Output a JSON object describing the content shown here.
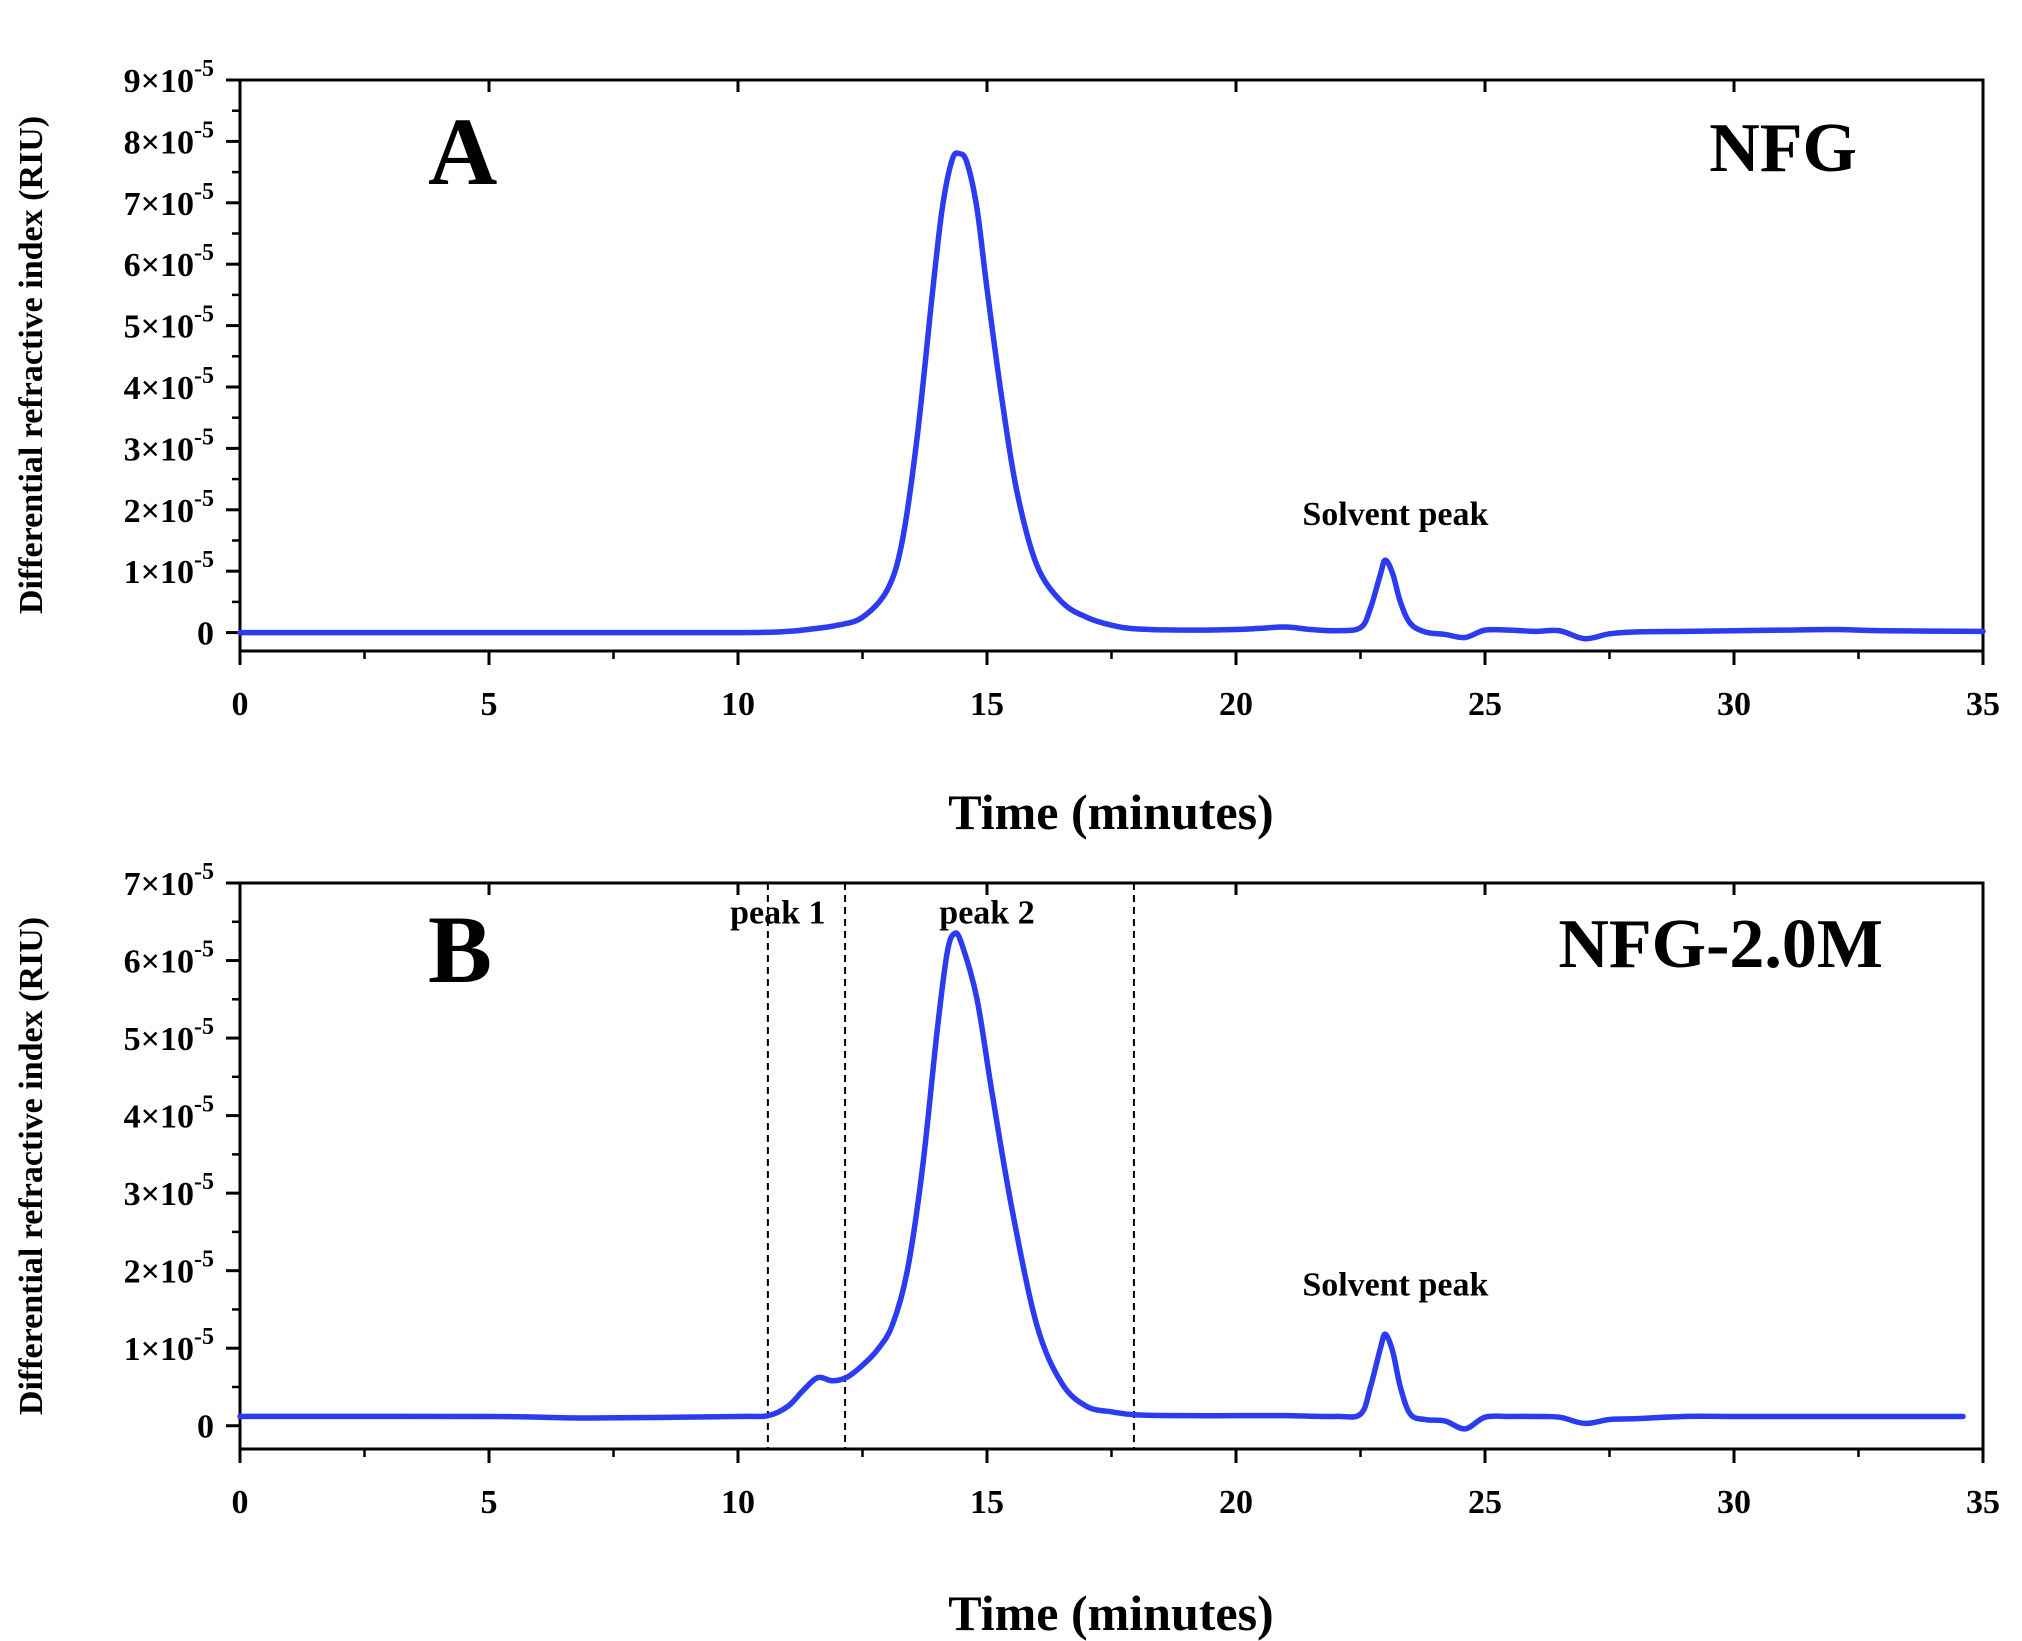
{
  "chart_data": [
    {
      "type": "line",
      "panel_label": "A",
      "sample_label": "NFG",
      "xlabel": "Time (minutes)",
      "ylabel": "Differential refractive index (RIU)",
      "xlim": [
        0,
        35
      ],
      "ylim": [
        -3e-06,
        9e-05
      ],
      "x_ticks": [
        0,
        5,
        10,
        15,
        20,
        25,
        30,
        35
      ],
      "y_ticks": [
        {
          "value": 0,
          "base": "0",
          "exp": ""
        },
        {
          "value": 1e-05,
          "base": "1×10",
          "exp": "-5"
        },
        {
          "value": 2e-05,
          "base": "2×10",
          "exp": "-5"
        },
        {
          "value": 3e-05,
          "base": "3×10",
          "exp": "-5"
        },
        {
          "value": 4e-05,
          "base": "4×10",
          "exp": "-5"
        },
        {
          "value": 5e-05,
          "base": "5×10",
          "exp": "-5"
        },
        {
          "value": 6e-05,
          "base": "6×10",
          "exp": "-5"
        },
        {
          "value": 7e-05,
          "base": "7×10",
          "exp": "-5"
        },
        {
          "value": 8e-05,
          "base": "8×10",
          "exp": "-5"
        },
        {
          "value": 9e-05,
          "base": "9×10",
          "exp": "-5"
        }
      ],
      "annotations": [
        {
          "text": "Solvent peak",
          "x": 23.2,
          "y": 1.75e-05
        }
      ],
      "series": [
        {
          "name": "NFG",
          "color": "#2b3cf0",
          "x": [
            0,
            5,
            10,
            11,
            11.5,
            12,
            12.5,
            13,
            13.3,
            13.6,
            13.9,
            14.1,
            14.3,
            14.45,
            14.6,
            14.8,
            15.0,
            15.3,
            15.6,
            16.0,
            16.5,
            17,
            17.5,
            18,
            19,
            20,
            20.5,
            21,
            21.5,
            22,
            22.5,
            22.7,
            22.9,
            23.0,
            23.15,
            23.3,
            23.5,
            23.8,
            24.2,
            24.6,
            25.0,
            25.5,
            26,
            26.5,
            27,
            27.5,
            28,
            29,
            30,
            31,
            32,
            33,
            35
          ],
          "y": [
            0,
            0,
            0,
            2e-07,
            6e-07,
            1.2e-06,
            2.5e-06,
            7e-06,
            1.5e-05,
            3.2e-05,
            5.5e-05,
            6.9e-05,
            7.7e-05,
            7.8e-05,
            7.65e-05,
            6.9e-05,
            5.6e-05,
            3.8e-05,
            2.3e-05,
            1.1e-05,
            5e-06,
            2.5e-06,
            1.2e-06,
            6e-07,
            4e-07,
            5e-07,
            7e-07,
            9e-07,
            5e-07,
            3e-07,
            8e-07,
            4e-06,
            9.5e-06,
            1.18e-05,
            9.5e-06,
            5e-06,
            1.5e-06,
            1e-07,
            -3e-07,
            -8e-07,
            4e-07,
            4e-07,
            2e-07,
            3e-07,
            -1e-06,
            -2e-07,
            1e-07,
            2e-07,
            3e-07,
            4e-07,
            5e-07,
            3e-07,
            2e-07
          ]
        }
      ]
    },
    {
      "type": "line",
      "panel_label": "B",
      "sample_label": "NFG-2.0M",
      "xlabel": "Time (minutes)",
      "ylabel": "Differential refractive index (RIU)",
      "xlim": [
        0,
        35
      ],
      "ylim": [
        -3e-06,
        7e-05
      ],
      "x_ticks": [
        0,
        5,
        10,
        15,
        20,
        25,
        30,
        35
      ],
      "y_ticks": [
        {
          "value": 0,
          "base": "0",
          "exp": ""
        },
        {
          "value": 1e-05,
          "base": "1×10",
          "exp": "-5"
        },
        {
          "value": 2e-05,
          "base": "2×10",
          "exp": "-5"
        },
        {
          "value": 3e-05,
          "base": "3×10",
          "exp": "-5"
        },
        {
          "value": 4e-05,
          "base": "4×10",
          "exp": "-5"
        },
        {
          "value": 5e-05,
          "base": "5×10",
          "exp": "-5"
        },
        {
          "value": 6e-05,
          "base": "6×10",
          "exp": "-5"
        },
        {
          "value": 7e-05,
          "base": "7×10",
          "exp": "-5"
        }
      ],
      "annotations": [
        {
          "text": "peak 1",
          "x": 10.8,
          "y": 6.48e-05
        },
        {
          "text": "peak 2",
          "x": 15.0,
          "y": 6.48e-05
        },
        {
          "text": "Solvent peak",
          "x": 23.2,
          "y": 1.68e-05
        }
      ],
      "vlines": [
        10.6,
        12.15,
        17.95
      ],
      "series": [
        {
          "name": "NFG-2.0M",
          "color": "#2b3cf0",
          "x": [
            0,
            5,
            7,
            10,
            10.6,
            11.0,
            11.3,
            11.6,
            11.9,
            12.2,
            12.5,
            12.8,
            13.1,
            13.4,
            13.7,
            14.0,
            14.2,
            14.35,
            14.5,
            14.8,
            15.1,
            15.5,
            16.0,
            16.5,
            17,
            17.5,
            18,
            19,
            20,
            21,
            22,
            22.5,
            22.7,
            22.9,
            23.0,
            23.15,
            23.3,
            23.5,
            23.8,
            24.2,
            24.6,
            25.0,
            25.5,
            26,
            26.5,
            27,
            27.5,
            28,
            29,
            30,
            31,
            32,
            33,
            34.6
          ],
          "y": [
            1.2e-06,
            1.2e-06,
            1e-06,
            1.2e-06,
            1.3e-06,
            2.5e-06,
            4.5e-06,
            6.2e-06,
            5.8e-06,
            6.3e-06,
            7.8e-06,
            9.8e-06,
            1.3e-05,
            2e-05,
            3.3e-05,
            5.1e-05,
            6.1e-05,
            6.35e-05,
            6.2e-05,
            5.5e-05,
            4.3e-05,
            2.8e-05,
            1.3e-05,
            5.5e-06,
            2.5e-06,
            1.8e-06,
            1.4e-06,
            1.3e-06,
            1.3e-06,
            1.3e-06,
            1.2e-06,
            1.5e-06,
            5e-06,
            1e-05,
            1.18e-05,
            9.5e-06,
            5e-06,
            1.5e-06,
            8e-07,
            6e-07,
            -4e-07,
            1.1e-06,
            1.2e-06,
            1.2e-06,
            1.1e-06,
            3e-07,
            8e-07,
            9e-07,
            1.2e-06,
            1.2e-06,
            1.2e-06,
            1.2e-06,
            1.2e-06,
            1.2e-06
          ]
        }
      ]
    }
  ]
}
